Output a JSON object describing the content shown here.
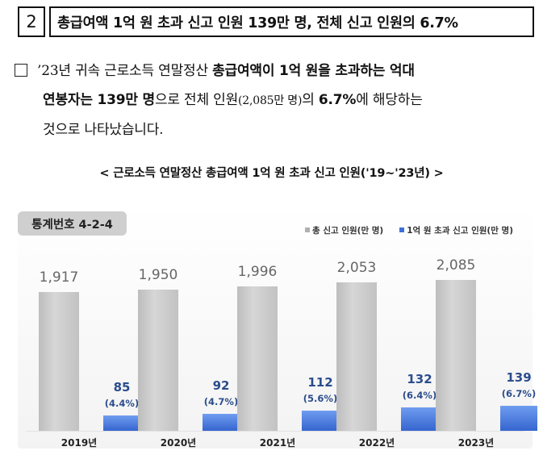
{
  "header": {
    "number": "2",
    "title": "총급여액 1억 원 초과 신고 인원 139만 명, 전체 신고 인원의 6.7%"
  },
  "paragraph": {
    "l1a": "’23년 귀속 근로소득 연말정산 ",
    "l1b": "총급여액이 1억 원을 초과하는 억대",
    "l2a": "연봉자는 139만 명",
    "l2b": "으로 전체 인원",
    "l2c": "(2,085만 명)",
    "l2d": "의 ",
    "l2e": "6.7%",
    "l2f": "에 해당하는",
    "l3": "것으로 나타났습니다."
  },
  "caption": "< 근로소득 연말정산 총급여액 1억 원 초과 신고 인원('19~'23년) >",
  "chart": {
    "stat_label": "통계번호 4-2-4",
    "colors": {
      "total": "#c4c4c4",
      "high": "#3d6fd6"
    }
  },
  "chart_data": {
    "type": "bar",
    "title": "근로소득 연말정산 총급여액 1억 원 초과 신고 인원('19~'23년)",
    "categories": [
      "2019년",
      "2020년",
      "2021년",
      "2022년",
      "2023년"
    ],
    "series": [
      {
        "name": "총 신고 인원(만 명)",
        "values": [
          1917,
          1950,
          1996,
          2053,
          2085
        ],
        "labels": [
          "1,917",
          "1,950",
          "1,996",
          "2,053",
          "2,085"
        ]
      },
      {
        "name": "1억 원 초과 신고 인원(만 명)",
        "values": [
          85,
          92,
          112,
          132,
          139
        ],
        "labels": [
          "85",
          "92",
          "112",
          "132",
          "139"
        ],
        "percent_labels": [
          "(4.4%)",
          "(4.7%)",
          "(5.6%)",
          "(6.4%)",
          "(6.7%)"
        ]
      }
    ],
    "legend": "top-right",
    "grid": false
  }
}
